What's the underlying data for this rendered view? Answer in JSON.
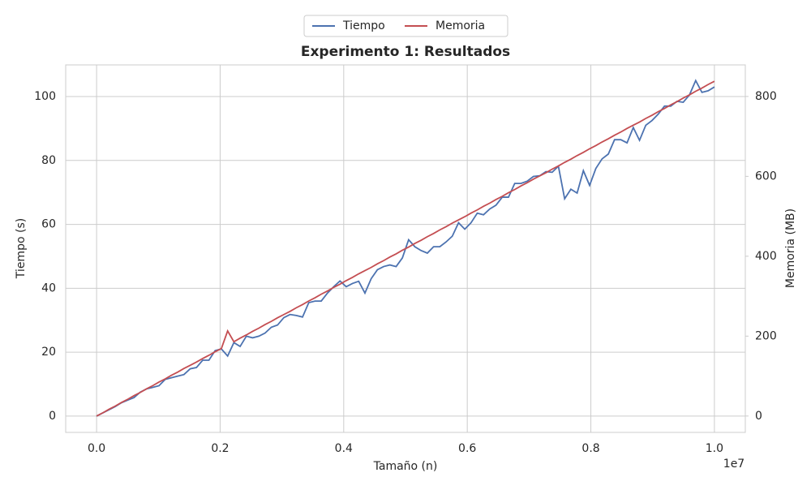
{
  "chart_data": {
    "type": "line",
    "title": "Experimento 1: Resultados",
    "x_label": "Tamaño (n)",
    "y_label": "Tiempo (s)",
    "y2_label": "Memoria (MB)",
    "x_offset_label": "1e7",
    "x": [
      0,
      101010,
      202020,
      303030,
      404040,
      505051,
      606061,
      707071,
      808081,
      909091,
      1010101,
      1111111,
      1212121,
      1313131,
      1414141,
      1515152,
      1616162,
      1717172,
      1818182,
      1919192,
      2020202,
      2121212,
      2222222,
      2323232,
      2424242,
      2525253,
      2626263,
      2727273,
      2828283,
      2929293,
      3030303,
      3131313,
      3232323,
      3333333,
      3434343,
      3535354,
      3636364,
      3737374,
      3838384,
      3939394,
      4040404,
      4141414,
      4242424,
      4343434,
      4444444,
      4545455,
      4646465,
      4747475,
      4848485,
      4949495,
      5050505,
      5151515,
      5252525,
      5353535,
      5454545,
      5555556,
      5656566,
      5757576,
      5858586,
      5959596,
      6060606,
      6161616,
      6262626,
      6363636,
      6464646,
      6565657,
      6666667,
      6767677,
      6868687,
      6969697,
      7070707,
      7171717,
      7272727,
      7373737,
      7474747,
      7575758,
      7676768,
      7777778,
      7878788,
      7979798,
      8080808,
      8181818,
      8282828,
      8383838,
      8484848,
      8585859,
      8686869,
      8787879,
      8888889,
      8989899,
      9090909,
      9191919,
      9292929,
      9393939,
      9494949,
      9595960,
      9696970,
      9797980,
      9898990,
      10000000
    ],
    "series": [
      {
        "name": "Tiempo",
        "color": "#4c72b0",
        "axis": "y",
        "values": [
          0,
          1,
          2,
          3,
          4.2,
          5,
          5.8,
          7.5,
          8.5,
          9,
          9.5,
          11.5,
          12,
          12.5,
          13,
          14.8,
          15.2,
          17.5,
          17.5,
          20.5,
          21,
          18.8,
          23,
          21.8,
          25,
          24.5,
          25,
          26,
          27.8,
          28.5,
          30.8,
          31.8,
          31.5,
          31,
          35.5,
          36,
          36,
          38.5,
          40.5,
          42.3,
          40.5,
          41.5,
          42.2,
          38.5,
          43,
          45.8,
          46.8,
          47.3,
          46.8,
          49.5,
          55.2,
          53,
          51.8,
          51,
          53,
          53,
          54.5,
          56.3,
          60.5,
          58.5,
          60.5,
          63.5,
          63,
          64.8,
          66,
          68.5,
          68.5,
          72.8,
          72.8,
          73.5,
          75,
          75.2,
          76.5,
          76.3,
          78.2,
          68,
          71,
          69.8,
          76.8,
          72.2,
          77.5,
          80.5,
          82,
          86.5,
          86.5,
          85.5,
          90.3,
          86.3,
          91,
          92.5,
          94.5,
          97,
          97,
          98.5,
          98.2,
          100.5,
          105,
          101.3,
          101.8,
          103
        ]
      },
      {
        "name": "Memoria",
        "color": "#c44e52",
        "axis": "y2",
        "values": [
          0,
          8,
          17,
          25,
          34,
          42,
          51,
          59,
          68,
          76,
          85,
          93,
          102,
          110,
          119,
          127,
          135,
          144,
          152,
          161,
          169,
          213,
          186,
          195,
          203,
          212,
          220,
          229,
          237,
          246,
          254,
          262,
          271,
          279,
          288,
          296,
          305,
          313,
          322,
          330,
          339,
          347,
          356,
          364,
          372,
          381,
          389,
          398,
          406,
          415,
          423,
          432,
          440,
          449,
          457,
          466,
          474,
          483,
          491,
          499,
          508,
          516,
          525,
          533,
          542,
          550,
          559,
          567,
          576,
          584,
          593,
          601,
          609,
          618,
          626,
          635,
          643,
          652,
          660,
          669,
          677,
          686,
          694,
          703,
          711,
          720,
          728,
          736,
          745,
          753,
          762,
          770,
          779,
          787,
          796,
          804,
          813,
          821,
          830,
          838
        ]
      }
    ],
    "xlim": [
      -500000,
      10500000
    ],
    "xticks": [
      {
        "value": 0,
        "label": "0.0"
      },
      {
        "value": 2000000,
        "label": "0.2"
      },
      {
        "value": 4000000,
        "label": "0.4"
      },
      {
        "value": 6000000,
        "label": "0.6"
      },
      {
        "value": 8000000,
        "label": "0.8"
      },
      {
        "value": 10000000,
        "label": "1.0"
      }
    ],
    "ylim": [
      -5.1,
      109.9
    ],
    "yticks": [
      0,
      20,
      40,
      60,
      80,
      100
    ],
    "y2lim": [
      -41,
      879
    ],
    "y2ticks": [
      0,
      200,
      400,
      600,
      800
    ],
    "grid": true,
    "legend": "top"
  }
}
